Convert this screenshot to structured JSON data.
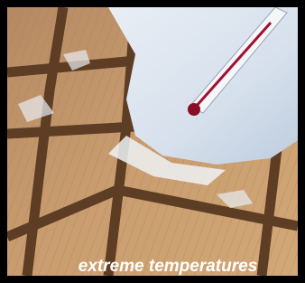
{
  "caption": "extreme temperatures"
}
